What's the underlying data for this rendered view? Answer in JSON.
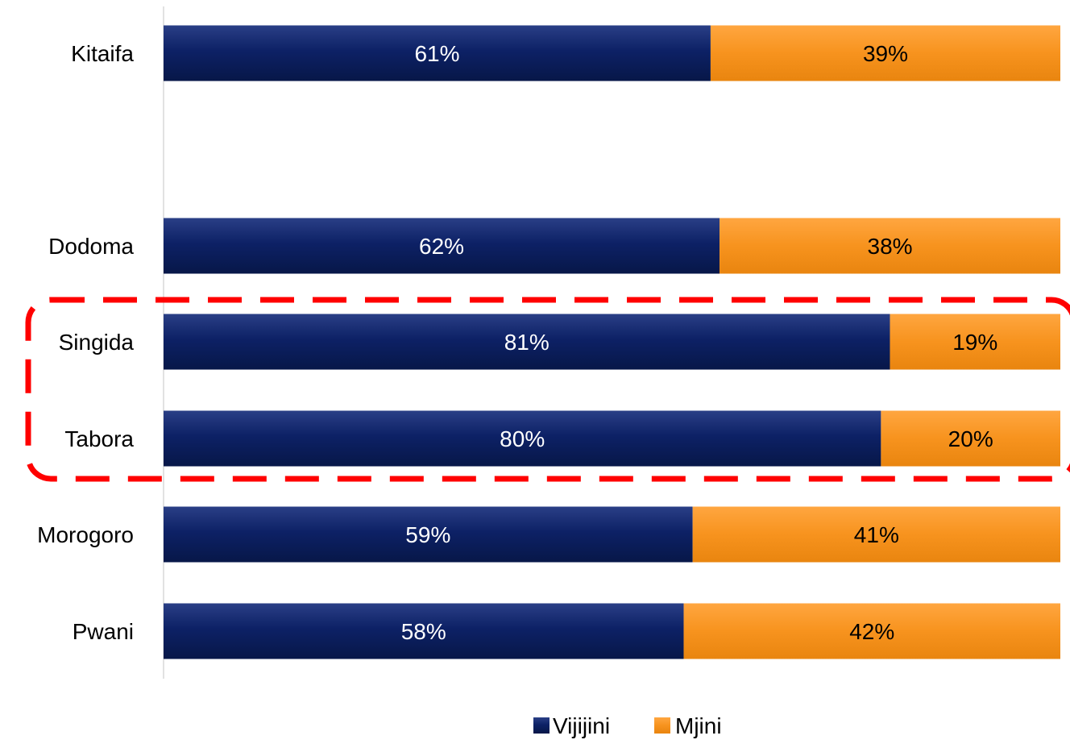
{
  "chart_data": {
    "type": "bar",
    "orientation": "horizontal",
    "stacked": "100%",
    "categories": [
      "Kitaifa",
      "Dodoma",
      "Singida",
      "Tabora",
      "Morogoro",
      "Pwani"
    ],
    "series": [
      {
        "name": "Vijijini",
        "values": [
          61,
          62,
          81,
          80,
          59,
          58
        ],
        "labels": [
          "61%",
          "62%",
          "81%",
          "80%",
          "59%",
          "58%"
        ],
        "color": "#0b1f5c"
      },
      {
        "name": "Mjini",
        "values": [
          39,
          38,
          19,
          20,
          41,
          42
        ],
        "labels": [
          "39%",
          "38%",
          "19%",
          "20%",
          "41%",
          "42%"
        ],
        "color": "#f7931e"
      }
    ],
    "xlim": [
      0,
      100
    ],
    "grid": false,
    "legend_position": "bottom",
    "highlight": {
      "categories": [
        "Singida",
        "Tabora"
      ],
      "style": "red dashed rounded box",
      "color": "#ff0000"
    }
  }
}
